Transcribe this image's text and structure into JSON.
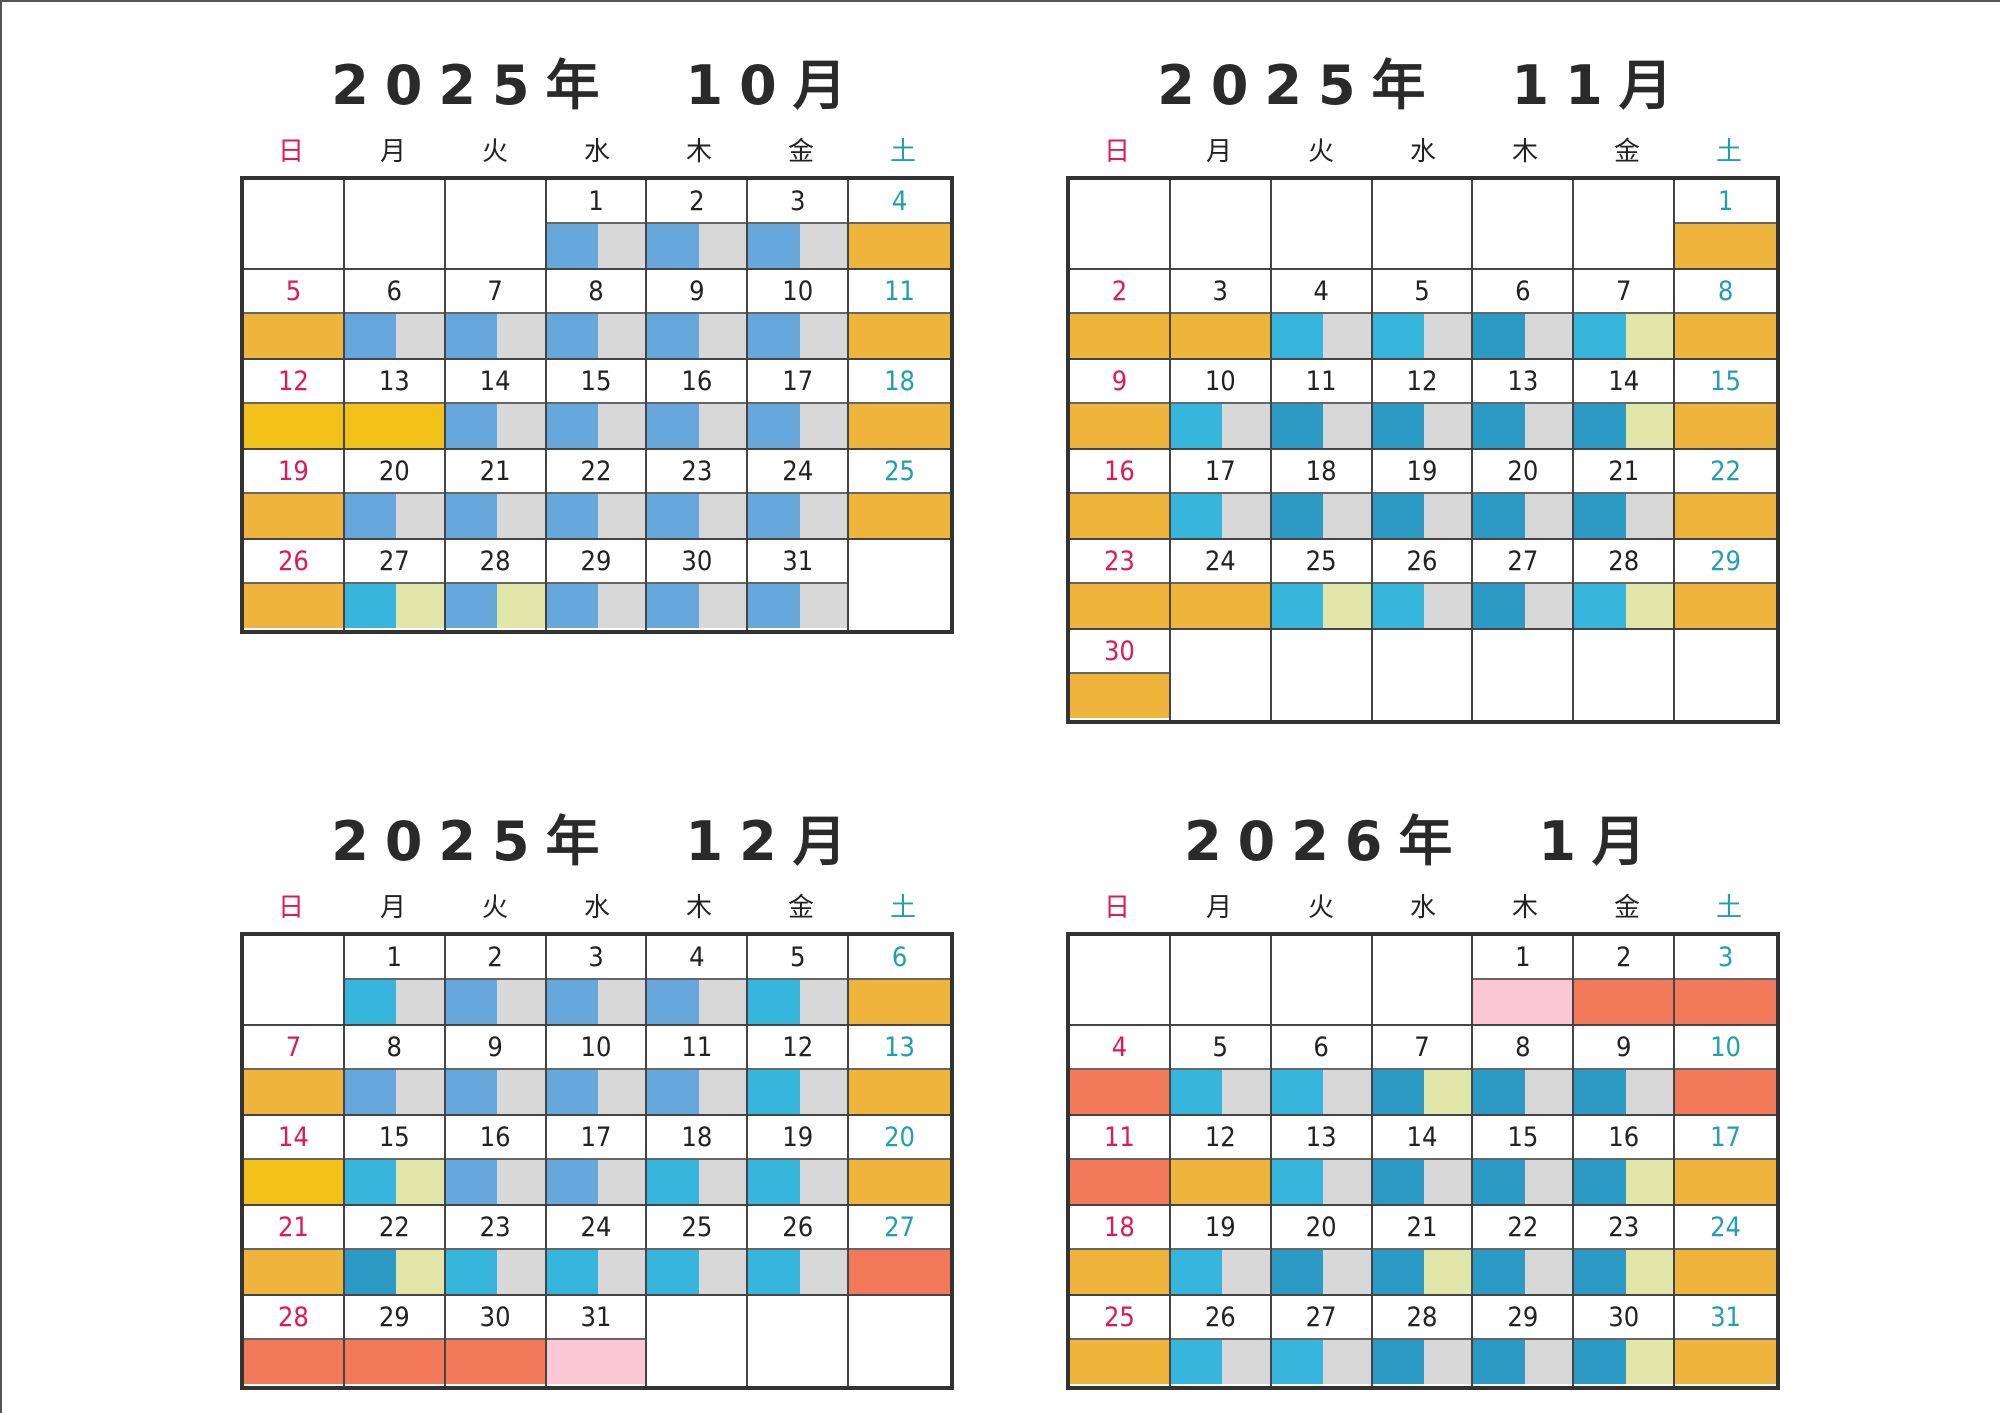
{
  "weekdays": [
    "日",
    "月",
    "火",
    "水",
    "木",
    "金",
    "土"
  ],
  "colors": {
    "O": "#efb43c",
    "Y": "#f2c21a",
    "R": "#f2795a",
    "P": "#fbc6d6",
    "B": "#66a8dc",
    "C": "#37b6dd",
    "T": "#2b9bc6",
    "G": "#d8d8d8",
    "L": "#e0e7a8",
    "sun_text": "#e0185a",
    "sat_text": "#1f9fb0",
    "weekday_text": "#222222"
  },
  "calendars": [
    {
      "title": "2025年　10月",
      "weeks": [
        [
          {
            "d": ""
          },
          {
            "d": ""
          },
          {
            "d": ""
          },
          {
            "d": "1",
            "b": [
              "B",
              "G"
            ]
          },
          {
            "d": "2",
            "b": [
              "B",
              "G"
            ]
          },
          {
            "d": "3",
            "b": [
              "B",
              "G"
            ]
          },
          {
            "d": "4",
            "b": [
              "O"
            ]
          }
        ],
        [
          {
            "d": "5",
            "b": [
              "O"
            ]
          },
          {
            "d": "6",
            "b": [
              "B",
              "G"
            ]
          },
          {
            "d": "7",
            "b": [
              "B",
              "G"
            ]
          },
          {
            "d": "8",
            "b": [
              "B",
              "G"
            ]
          },
          {
            "d": "9",
            "b": [
              "B",
              "G"
            ]
          },
          {
            "d": "10",
            "b": [
              "B",
              "G"
            ]
          },
          {
            "d": "11",
            "b": [
              "O"
            ]
          }
        ],
        [
          {
            "d": "12",
            "b": [
              "Y"
            ]
          },
          {
            "d": "13",
            "b": [
              "Y"
            ]
          },
          {
            "d": "14",
            "b": [
              "B",
              "G"
            ]
          },
          {
            "d": "15",
            "b": [
              "B",
              "G"
            ]
          },
          {
            "d": "16",
            "b": [
              "B",
              "G"
            ]
          },
          {
            "d": "17",
            "b": [
              "B",
              "G"
            ]
          },
          {
            "d": "18",
            "b": [
              "O"
            ]
          }
        ],
        [
          {
            "d": "19",
            "b": [
              "O"
            ]
          },
          {
            "d": "20",
            "b": [
              "B",
              "G"
            ]
          },
          {
            "d": "21",
            "b": [
              "B",
              "G"
            ]
          },
          {
            "d": "22",
            "b": [
              "B",
              "G"
            ]
          },
          {
            "d": "23",
            "b": [
              "B",
              "G"
            ]
          },
          {
            "d": "24",
            "b": [
              "B",
              "G"
            ]
          },
          {
            "d": "25",
            "b": [
              "O"
            ]
          }
        ],
        [
          {
            "d": "26",
            "b": [
              "O"
            ]
          },
          {
            "d": "27",
            "b": [
              "C",
              "L"
            ]
          },
          {
            "d": "28",
            "b": [
              "B",
              "L"
            ]
          },
          {
            "d": "29",
            "b": [
              "B",
              "G"
            ]
          },
          {
            "d": "30",
            "b": [
              "B",
              "G"
            ]
          },
          {
            "d": "31",
            "b": [
              "B",
              "G"
            ]
          },
          {
            "d": ""
          }
        ]
      ]
    },
    {
      "title": "2025年　11月",
      "weeks": [
        [
          {
            "d": ""
          },
          {
            "d": ""
          },
          {
            "d": ""
          },
          {
            "d": ""
          },
          {
            "d": ""
          },
          {
            "d": ""
          },
          {
            "d": "1",
            "b": [
              "O"
            ]
          }
        ],
        [
          {
            "d": "2",
            "b": [
              "O"
            ]
          },
          {
            "d": "3",
            "b": [
              "O"
            ]
          },
          {
            "d": "4",
            "b": [
              "C",
              "G"
            ]
          },
          {
            "d": "5",
            "b": [
              "C",
              "G"
            ]
          },
          {
            "d": "6",
            "b": [
              "T",
              "G"
            ]
          },
          {
            "d": "7",
            "b": [
              "C",
              "L"
            ]
          },
          {
            "d": "8",
            "b": [
              "O"
            ]
          }
        ],
        [
          {
            "d": "9",
            "b": [
              "O"
            ]
          },
          {
            "d": "10",
            "b": [
              "C",
              "G"
            ]
          },
          {
            "d": "11",
            "b": [
              "T",
              "G"
            ]
          },
          {
            "d": "12",
            "b": [
              "T",
              "G"
            ]
          },
          {
            "d": "13",
            "b": [
              "T",
              "G"
            ]
          },
          {
            "d": "14",
            "b": [
              "T",
              "L"
            ]
          },
          {
            "d": "15",
            "b": [
              "O"
            ]
          }
        ],
        [
          {
            "d": "16",
            "b": [
              "O"
            ]
          },
          {
            "d": "17",
            "b": [
              "C",
              "G"
            ]
          },
          {
            "d": "18",
            "b": [
              "T",
              "G"
            ]
          },
          {
            "d": "19",
            "b": [
              "T",
              "G"
            ]
          },
          {
            "d": "20",
            "b": [
              "T",
              "G"
            ]
          },
          {
            "d": "21",
            "b": [
              "T",
              "G"
            ]
          },
          {
            "d": "22",
            "b": [
              "O"
            ]
          }
        ],
        [
          {
            "d": "23",
            "b": [
              "O"
            ]
          },
          {
            "d": "24",
            "b": [
              "O"
            ]
          },
          {
            "d": "25",
            "b": [
              "C",
              "L"
            ]
          },
          {
            "d": "26",
            "b": [
              "C",
              "G"
            ]
          },
          {
            "d": "27",
            "b": [
              "T",
              "G"
            ]
          },
          {
            "d": "28",
            "b": [
              "C",
              "L"
            ]
          },
          {
            "d": "29",
            "b": [
              "O"
            ]
          }
        ],
        [
          {
            "d": "30",
            "b": [
              "O"
            ]
          },
          {
            "d": ""
          },
          {
            "d": ""
          },
          {
            "d": ""
          },
          {
            "d": ""
          },
          {
            "d": ""
          },
          {
            "d": ""
          }
        ]
      ]
    },
    {
      "title": "2025年　12月",
      "weeks": [
        [
          {
            "d": ""
          },
          {
            "d": "1",
            "b": [
              "C",
              "G"
            ]
          },
          {
            "d": "2",
            "b": [
              "B",
              "G"
            ]
          },
          {
            "d": "3",
            "b": [
              "B",
              "G"
            ]
          },
          {
            "d": "4",
            "b": [
              "B",
              "G"
            ]
          },
          {
            "d": "5",
            "b": [
              "C",
              "G"
            ]
          },
          {
            "d": "6",
            "b": [
              "O"
            ]
          }
        ],
        [
          {
            "d": "7",
            "b": [
              "O"
            ]
          },
          {
            "d": "8",
            "b": [
              "B",
              "G"
            ]
          },
          {
            "d": "9",
            "b": [
              "B",
              "G"
            ]
          },
          {
            "d": "10",
            "b": [
              "B",
              "G"
            ]
          },
          {
            "d": "11",
            "b": [
              "B",
              "G"
            ]
          },
          {
            "d": "12",
            "b": [
              "C",
              "G"
            ]
          },
          {
            "d": "13",
            "b": [
              "O"
            ]
          }
        ],
        [
          {
            "d": "14",
            "b": [
              "Y"
            ]
          },
          {
            "d": "15",
            "b": [
              "C",
              "L"
            ]
          },
          {
            "d": "16",
            "b": [
              "B",
              "G"
            ]
          },
          {
            "d": "17",
            "b": [
              "B",
              "G"
            ]
          },
          {
            "d": "18",
            "b": [
              "C",
              "G"
            ]
          },
          {
            "d": "19",
            "b": [
              "C",
              "G"
            ]
          },
          {
            "d": "20",
            "b": [
              "O"
            ]
          }
        ],
        [
          {
            "d": "21",
            "b": [
              "O"
            ]
          },
          {
            "d": "22",
            "b": [
              "T",
              "L"
            ]
          },
          {
            "d": "23",
            "b": [
              "C",
              "G"
            ]
          },
          {
            "d": "24",
            "b": [
              "C",
              "G"
            ]
          },
          {
            "d": "25",
            "b": [
              "C",
              "G"
            ]
          },
          {
            "d": "26",
            "b": [
              "C",
              "G"
            ]
          },
          {
            "d": "27",
            "b": [
              "R"
            ]
          }
        ],
        [
          {
            "d": "28",
            "b": [
              "R"
            ]
          },
          {
            "d": "29",
            "b": [
              "R"
            ]
          },
          {
            "d": "30",
            "b": [
              "R"
            ]
          },
          {
            "d": "31",
            "b": [
              "P"
            ]
          },
          {
            "d": ""
          },
          {
            "d": ""
          },
          {
            "d": ""
          }
        ]
      ]
    },
    {
      "title": "2026年　1月",
      "weeks": [
        [
          {
            "d": ""
          },
          {
            "d": ""
          },
          {
            "d": ""
          },
          {
            "d": ""
          },
          {
            "d": "1",
            "b": [
              "P"
            ]
          },
          {
            "d": "2",
            "b": [
              "R"
            ]
          },
          {
            "d": "3",
            "b": [
              "R"
            ]
          }
        ],
        [
          {
            "d": "4",
            "b": [
              "R"
            ]
          },
          {
            "d": "5",
            "b": [
              "C",
              "G"
            ]
          },
          {
            "d": "6",
            "b": [
              "C",
              "G"
            ]
          },
          {
            "d": "7",
            "b": [
              "T",
              "L"
            ]
          },
          {
            "d": "8",
            "b": [
              "T",
              "G"
            ]
          },
          {
            "d": "9",
            "b": [
              "T",
              "G"
            ]
          },
          {
            "d": "10",
            "b": [
              "R"
            ]
          }
        ],
        [
          {
            "d": "11",
            "b": [
              "R"
            ]
          },
          {
            "d": "12",
            "b": [
              "O"
            ]
          },
          {
            "d": "13",
            "b": [
              "C",
              "G"
            ]
          },
          {
            "d": "14",
            "b": [
              "T",
              "G"
            ]
          },
          {
            "d": "15",
            "b": [
              "T",
              "G"
            ]
          },
          {
            "d": "16",
            "b": [
              "T",
              "L"
            ]
          },
          {
            "d": "17",
            "b": [
              "O"
            ]
          }
        ],
        [
          {
            "d": "18",
            "b": [
              "O"
            ]
          },
          {
            "d": "19",
            "b": [
              "C",
              "G"
            ]
          },
          {
            "d": "20",
            "b": [
              "T",
              "G"
            ]
          },
          {
            "d": "21",
            "b": [
              "T",
              "L"
            ]
          },
          {
            "d": "22",
            "b": [
              "T",
              "G"
            ]
          },
          {
            "d": "23",
            "b": [
              "T",
              "L"
            ]
          },
          {
            "d": "24",
            "b": [
              "O"
            ]
          }
        ],
        [
          {
            "d": "25",
            "b": [
              "O"
            ]
          },
          {
            "d": "26",
            "b": [
              "C",
              "G"
            ]
          },
          {
            "d": "27",
            "b": [
              "C",
              "G"
            ]
          },
          {
            "d": "28",
            "b": [
              "T",
              "G"
            ]
          },
          {
            "d": "29",
            "b": [
              "T",
              "G"
            ]
          },
          {
            "d": "30",
            "b": [
              "T",
              "L"
            ]
          },
          {
            "d": "31",
            "b": [
              "O"
            ]
          }
        ]
      ]
    }
  ]
}
